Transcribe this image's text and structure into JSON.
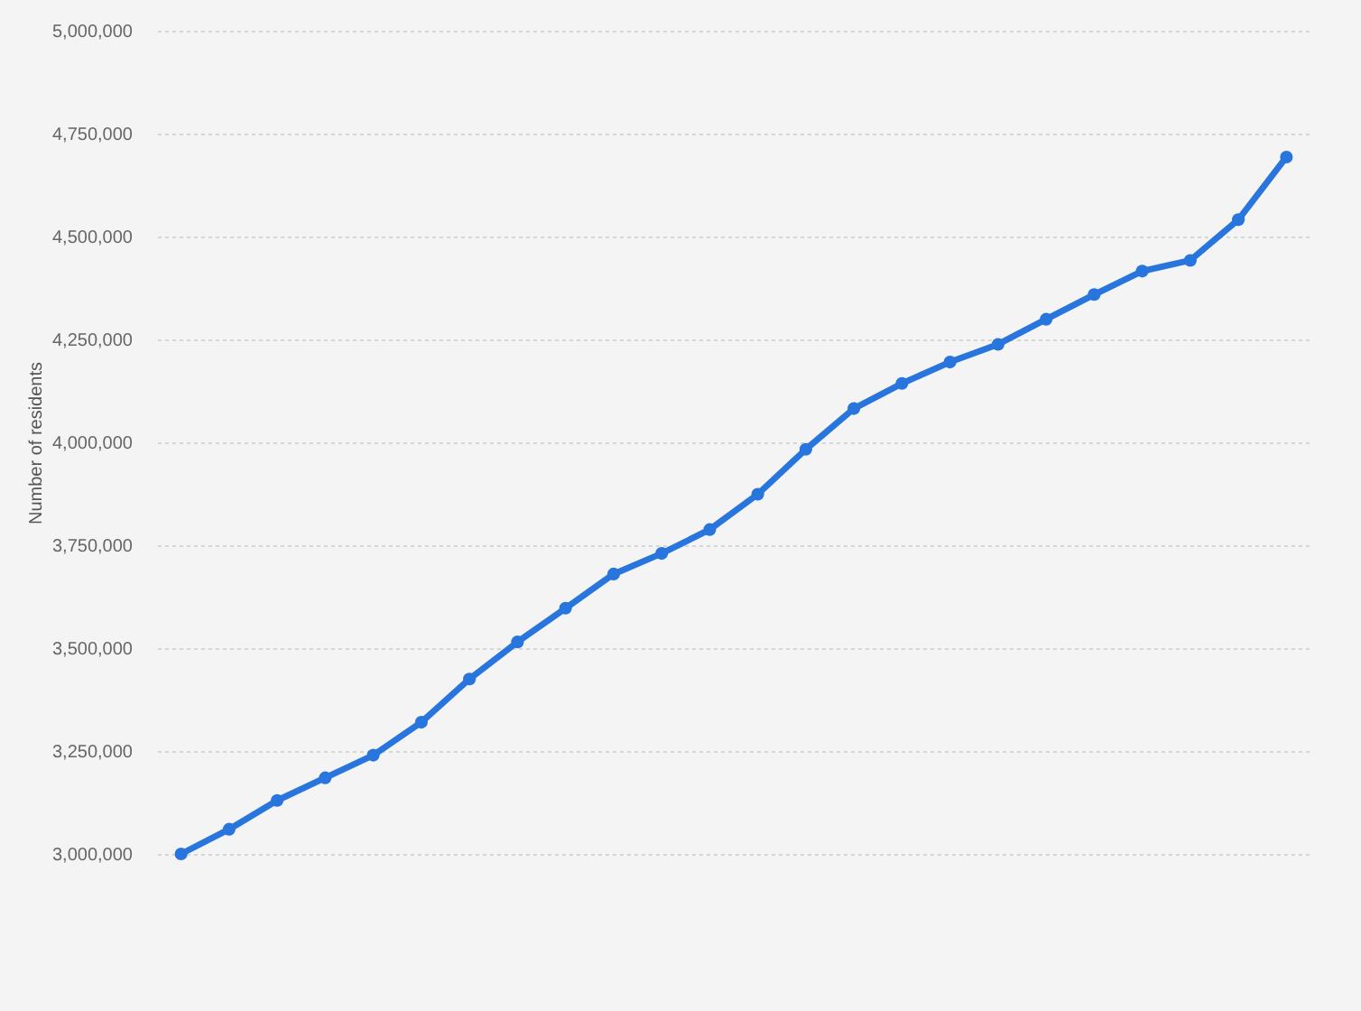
{
  "chart_data": {
    "type": "line",
    "ylabel": "Number of residents",
    "categories": [
      null,
      null,
      null,
      null,
      null,
      null,
      null,
      null,
      null,
      null,
      null,
      null,
      null,
      null,
      null,
      null,
      null,
      null,
      null,
      null,
      null,
      null,
      null,
      null
    ],
    "series": [
      {
        "color": "#2876dd",
        "values": [
          3000000,
          3060000,
          3130000,
          3185000,
          3240000,
          3320000,
          3425000,
          3515000,
          3597000,
          3680000,
          3730000,
          3788000,
          3874000,
          3983000,
          4082000,
          4143000,
          4195000,
          4238000,
          4299000,
          4359000,
          4416000,
          4442000,
          4541000,
          4693000
        ]
      }
    ],
    "ylim": [
      3000000,
      5000000
    ],
    "yticks": [
      {
        "value": 3000000,
        "label": "3,000,000"
      },
      {
        "value": 3250000,
        "label": "3,250,000"
      },
      {
        "value": 3500000,
        "label": "3,500,000"
      },
      {
        "value": 3750000,
        "label": "3,750,000"
      },
      {
        "value": 4000000,
        "label": "4,000,000"
      },
      {
        "value": 4250000,
        "label": "4,250,000"
      },
      {
        "value": 4500000,
        "label": "4,500,000"
      },
      {
        "value": 4750000,
        "label": "4,750,000"
      },
      {
        "value": 5000000,
        "label": "5,000,000"
      }
    ],
    "grid": "y",
    "legend": false,
    "tick_labels": "y",
    "marker": "circle",
    "line_style": "solid"
  }
}
